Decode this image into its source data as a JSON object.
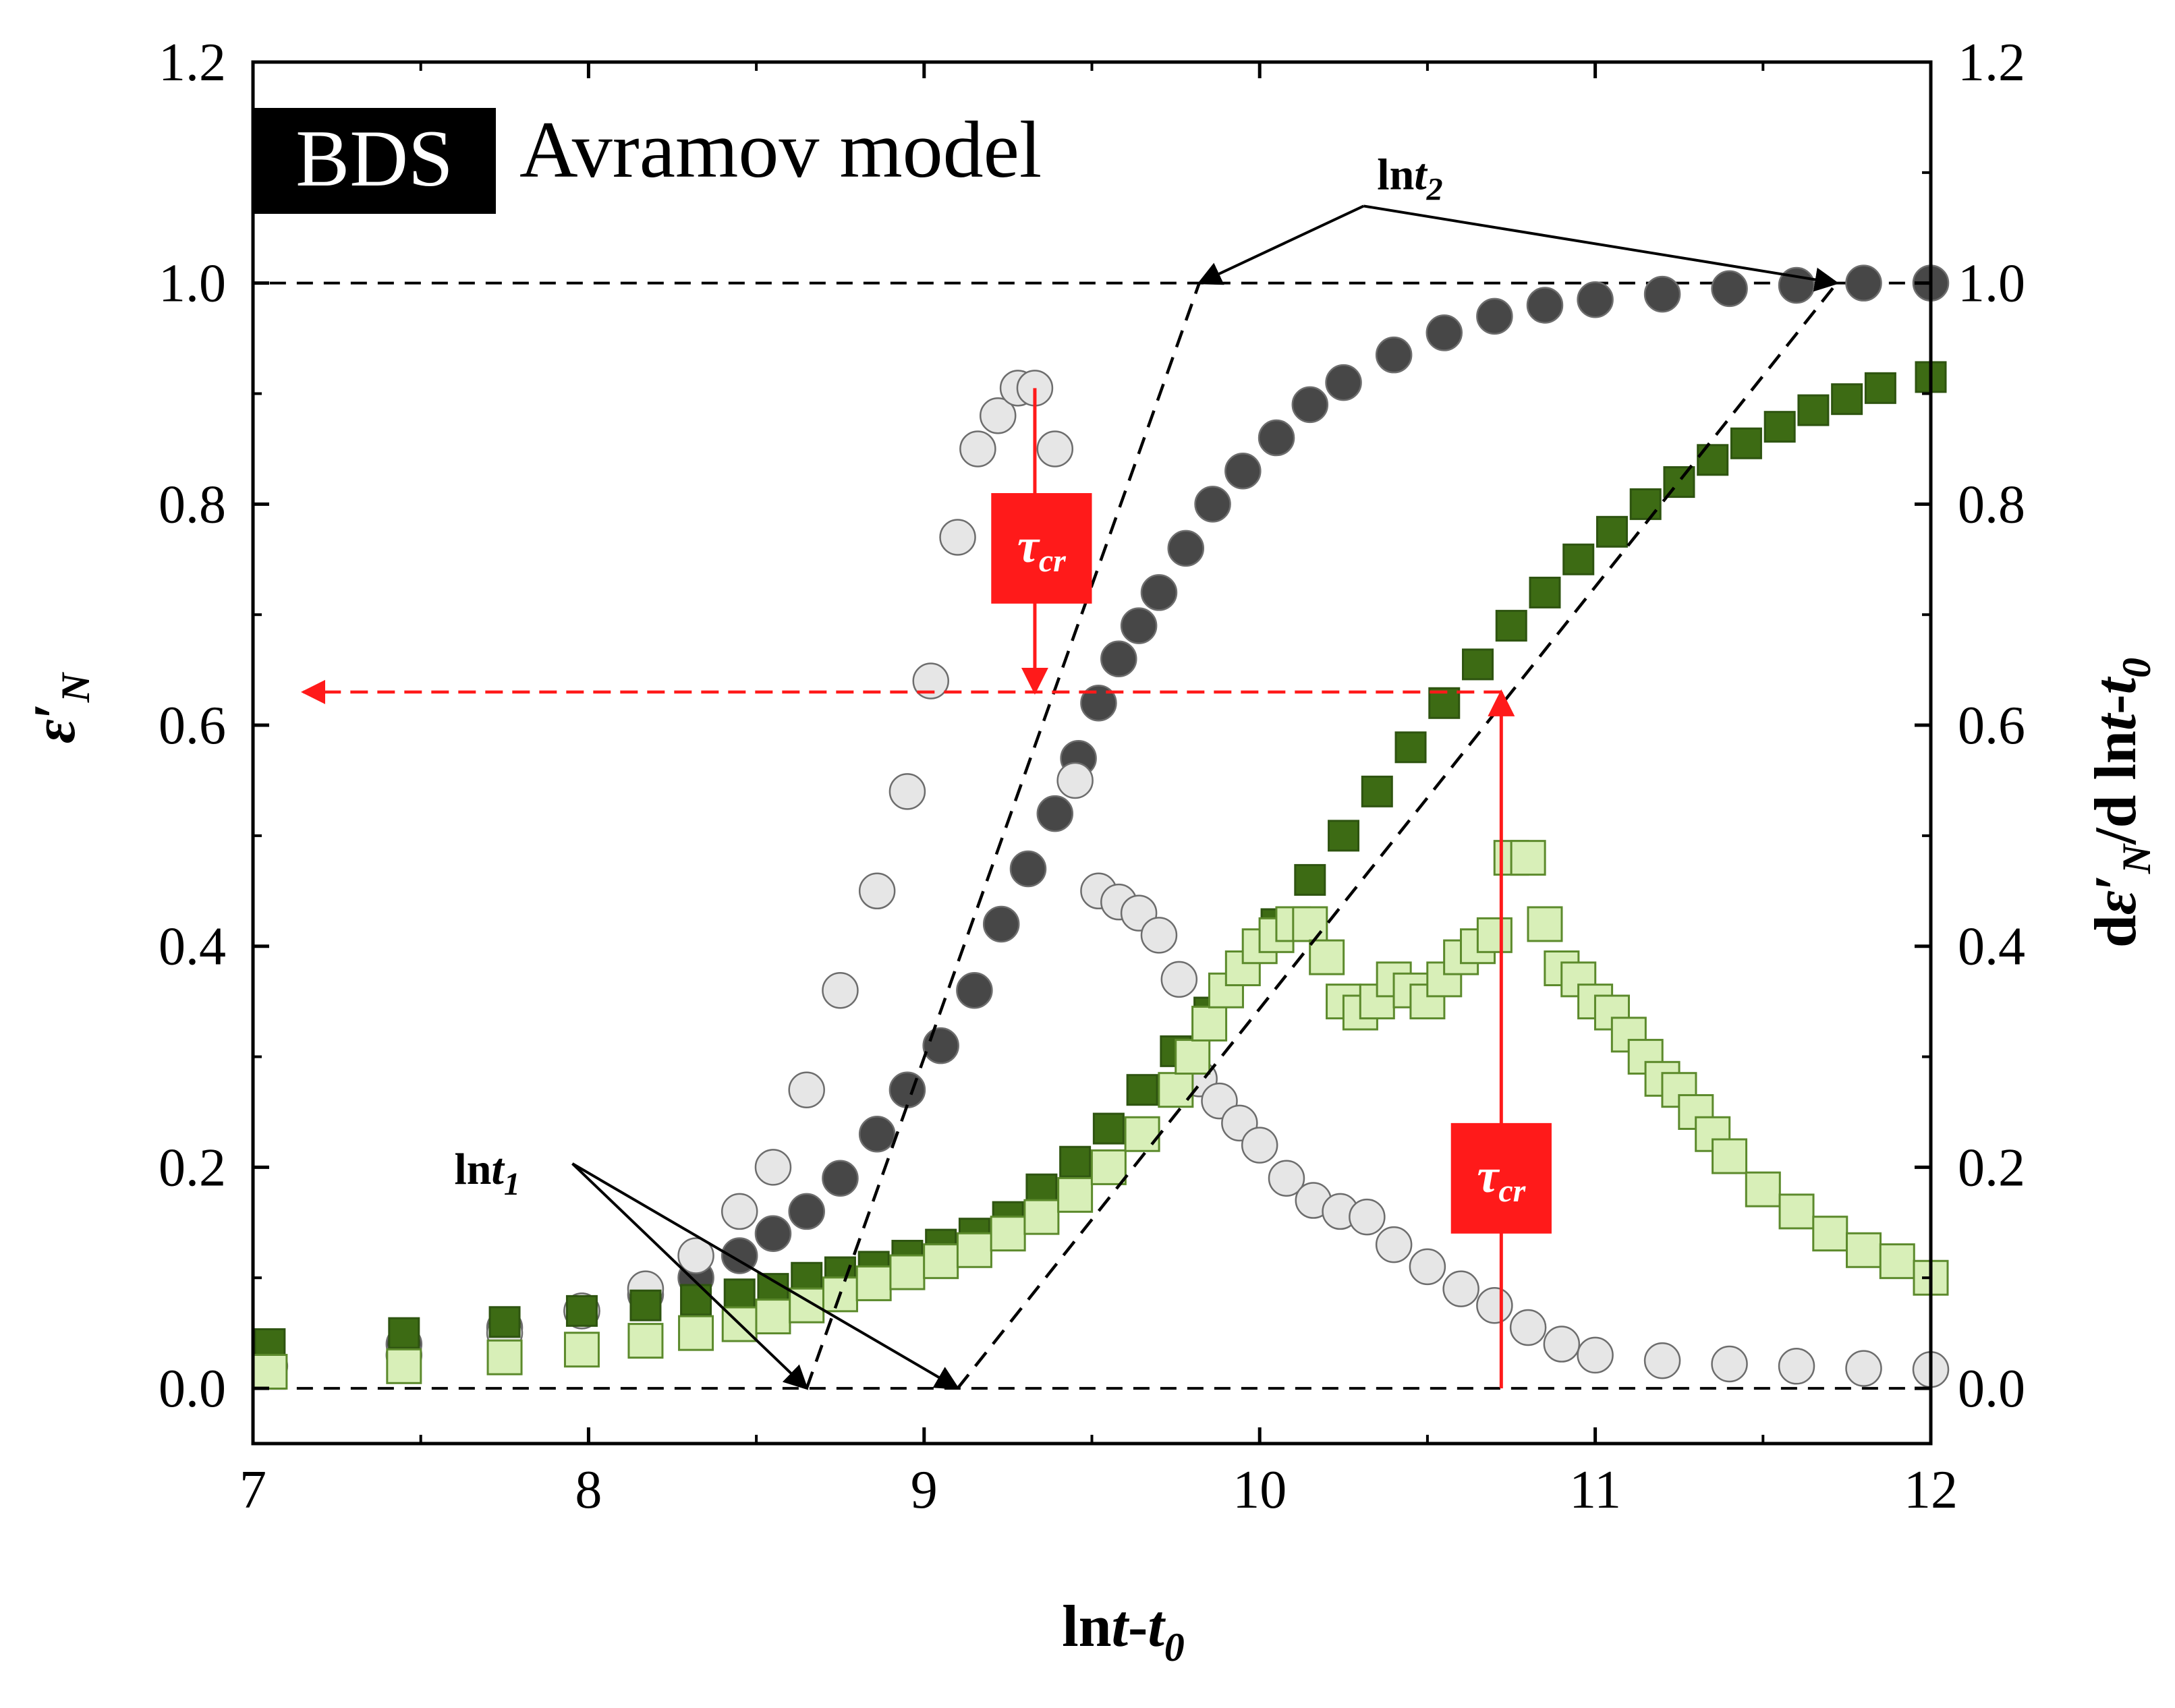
{
  "chart_data": {
    "type": "scatter",
    "title": "Avramov model",
    "badge": "BDS",
    "xlabel": "lnt-t0",
    "ylabel_left": "ε'N",
    "ylabel_right": "dε'N/d lnt-t0",
    "xlim": [
      7,
      12
    ],
    "ylim": [
      -0.05,
      1.2
    ],
    "x_ticks": [
      "7",
      "8",
      "9",
      "10",
      "11",
      "12"
    ],
    "y_ticks": [
      "0.0",
      "0.2",
      "0.4",
      "0.6",
      "0.8",
      "1.0",
      "1.2"
    ],
    "guide_lines": {
      "upper_level": 1.0,
      "lower_level": 0.0,
      "tau_level": 0.63
    },
    "tangent_lines": [
      {
        "name": "fast",
        "from": [
          8.65,
          0.0
        ],
        "to": [
          9.82,
          1.0
        ]
      },
      {
        "name": "slow",
        "from": [
          9.1,
          0.0
        ],
        "to": [
          11.72,
          1.0
        ]
      }
    ],
    "annotations": {
      "lnt1": {
        "label_prefix": "ln",
        "label_var": "t",
        "label_sub": "1",
        "at": [
          7.6,
          0.185
        ],
        "targets": [
          [
            8.65,
            0.0
          ],
          [
            9.1,
            0.0
          ]
        ]
      },
      "lnt2": {
        "label_prefix": "ln",
        "label_var": "t",
        "label_sub": "2",
        "at": [
          10.35,
          1.085
        ],
        "targets": [
          [
            9.82,
            1.0
          ],
          [
            11.72,
            1.0
          ]
        ]
      },
      "tau_fast": {
        "label_main": "τ",
        "label_sub": "cr",
        "x": 9.33,
        "y_top": 0.905,
        "y_bottom": 0.63,
        "box": [
          9.2,
          0.71,
          9.5,
          0.81
        ]
      },
      "tau_slow": {
        "label_main": "τ",
        "label_sub": "cr",
        "x": 10.72,
        "y_top": 0.0,
        "y_bottom": 0.63,
        "box": [
          10.57,
          0.14,
          10.87,
          0.24
        ]
      },
      "tau_arrow": {
        "from_x": 10.72,
        "to_x": 7.15,
        "y": 0.63
      }
    },
    "series": [
      {
        "name": "ε'N (fast, circles)",
        "marker": "circle",
        "fill": "#474747",
        "x": [
          7.45,
          7.75,
          7.98,
          8.17,
          8.32,
          8.45,
          8.55,
          8.65,
          8.75,
          8.86,
          8.95,
          9.05,
          9.15,
          9.23,
          9.31,
          9.39,
          9.46,
          9.52,
          9.58,
          9.64,
          9.7,
          9.78,
          9.86,
          9.95,
          10.05,
          10.15,
          10.25,
          10.4,
          10.55,
          10.7,
          10.85,
          11.0,
          11.2,
          11.4,
          11.6,
          11.8,
          12.0
        ],
        "y": [
          0.04,
          0.055,
          0.07,
          0.085,
          0.1,
          0.12,
          0.14,
          0.16,
          0.19,
          0.23,
          0.27,
          0.31,
          0.36,
          0.42,
          0.47,
          0.52,
          0.57,
          0.62,
          0.66,
          0.69,
          0.72,
          0.76,
          0.8,
          0.83,
          0.86,
          0.89,
          0.91,
          0.935,
          0.955,
          0.97,
          0.98,
          0.985,
          0.99,
          0.995,
          0.998,
          1.0,
          1.0
        ]
      },
      {
        "name": "dε'N/dlnt (fast, circles)",
        "marker": "circle",
        "fill": "#e6e6e6",
        "x": [
          7.05,
          7.45,
          7.75,
          7.98,
          8.17,
          8.32,
          8.45,
          8.55,
          8.65,
          8.75,
          8.86,
          8.95,
          9.02,
          9.1,
          9.16,
          9.22,
          9.28,
          9.33,
          9.39,
          9.45,
          9.52,
          9.58,
          9.64,
          9.7,
          9.76,
          9.82,
          9.88,
          9.94,
          10.0,
          10.08,
          10.16,
          10.24,
          10.32,
          10.4,
          10.5,
          10.6,
          10.7,
          10.8,
          10.9,
          11.0,
          11.2,
          11.4,
          11.6,
          11.8,
          12.0
        ],
        "y": [
          0.02,
          0.03,
          0.05,
          0.07,
          0.09,
          0.12,
          0.16,
          0.2,
          0.27,
          0.36,
          0.45,
          0.54,
          0.64,
          0.77,
          0.85,
          0.88,
          0.905,
          0.905,
          0.85,
          0.55,
          0.45,
          0.44,
          0.43,
          0.41,
          0.37,
          0.28,
          0.26,
          0.24,
          0.22,
          0.19,
          0.17,
          0.16,
          0.155,
          0.13,
          0.11,
          0.09,
          0.075,
          0.055,
          0.04,
          0.03,
          0.025,
          0.022,
          0.02,
          0.018,
          0.017
        ]
      },
      {
        "name": "ε'N (slow, squares)",
        "marker": "square",
        "fill": "#3d6b14",
        "x": [
          7.05,
          7.45,
          7.75,
          7.98,
          8.17,
          8.32,
          8.45,
          8.55,
          8.65,
          8.75,
          8.85,
          8.95,
          9.05,
          9.15,
          9.25,
          9.35,
          9.45,
          9.55,
          9.65,
          9.75,
          9.85,
          9.95,
          10.05,
          10.15,
          10.25,
          10.35,
          10.45,
          10.55,
          10.65,
          10.75,
          10.85,
          10.95,
          11.05,
          11.15,
          11.25,
          11.35,
          11.45,
          11.55,
          11.65,
          11.75,
          11.85,
          12.0
        ],
        "y": [
          0.04,
          0.05,
          0.06,
          0.07,
          0.075,
          0.08,
          0.085,
          0.09,
          0.1,
          0.105,
          0.11,
          0.12,
          0.13,
          0.14,
          0.155,
          0.18,
          0.205,
          0.235,
          0.27,
          0.305,
          0.34,
          0.38,
          0.42,
          0.46,
          0.5,
          0.54,
          0.58,
          0.62,
          0.655,
          0.69,
          0.72,
          0.75,
          0.775,
          0.8,
          0.82,
          0.84,
          0.855,
          0.87,
          0.885,
          0.895,
          0.905,
          0.915
        ]
      },
      {
        "name": "dε'N/dlnt (slow, squares)",
        "marker": "square",
        "fill": "#d8efb8",
        "x": [
          7.05,
          7.45,
          7.75,
          7.98,
          8.17,
          8.32,
          8.45,
          8.55,
          8.65,
          8.75,
          8.85,
          8.95,
          9.05,
          9.15,
          9.25,
          9.35,
          9.45,
          9.55,
          9.65,
          9.75,
          9.8,
          9.85,
          9.9,
          9.95,
          10.0,
          10.05,
          10.1,
          10.15,
          10.2,
          10.25,
          10.3,
          10.35,
          10.4,
          10.45,
          10.5,
          10.55,
          10.6,
          10.65,
          10.7,
          10.75,
          10.8,
          10.85,
          10.9,
          10.95,
          11.0,
          11.05,
          11.1,
          11.15,
          11.2,
          11.25,
          11.3,
          11.35,
          11.4,
          11.5,
          11.6,
          11.7,
          11.8,
          11.9,
          12.0
        ],
        "y": [
          0.015,
          0.02,
          0.028,
          0.035,
          0.043,
          0.05,
          0.058,
          0.065,
          0.075,
          0.085,
          0.095,
          0.105,
          0.115,
          0.125,
          0.14,
          0.155,
          0.175,
          0.2,
          0.23,
          0.27,
          0.3,
          0.33,
          0.36,
          0.38,
          0.4,
          0.41,
          0.42,
          0.42,
          0.39,
          0.35,
          0.34,
          0.35,
          0.37,
          0.36,
          0.35,
          0.37,
          0.39,
          0.4,
          0.41,
          0.48,
          0.48,
          0.42,
          0.38,
          0.37,
          0.35,
          0.34,
          0.32,
          0.3,
          0.28,
          0.27,
          0.25,
          0.23,
          0.21,
          0.18,
          0.16,
          0.14,
          0.125,
          0.115,
          0.1
        ]
      }
    ]
  }
}
